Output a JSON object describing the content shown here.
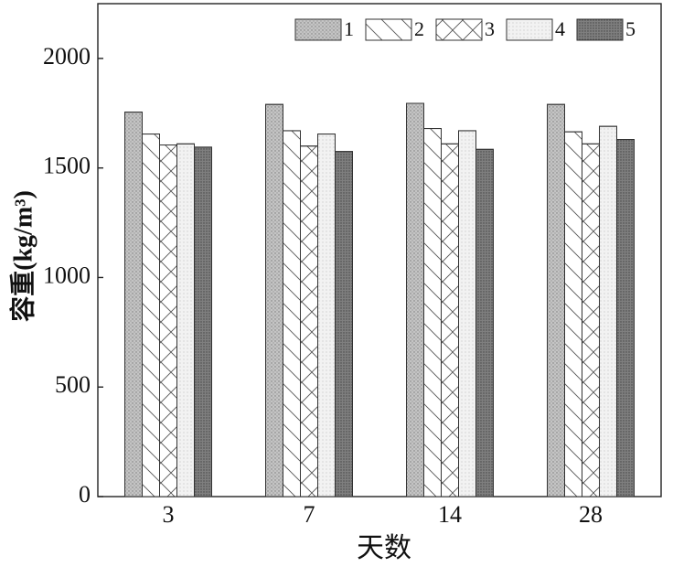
{
  "chart_data": {
    "type": "bar",
    "x_label": "天数",
    "y_label": "容重(kg/m³)",
    "categories": [
      "3",
      "7",
      "14",
      "28"
    ],
    "series": [
      {
        "name": "1",
        "color": "#c4c4c4",
        "hatch": "dots",
        "values": [
          1755,
          1790,
          1795,
          1790
        ]
      },
      {
        "name": "2",
        "color": "#ffffff",
        "hatch": "diagonal",
        "values": [
          1655,
          1670,
          1680,
          1665
        ]
      },
      {
        "name": "3",
        "color": "#ffffff",
        "hatch": "cross",
        "values": [
          1605,
          1600,
          1610,
          1610
        ]
      },
      {
        "name": "4",
        "color": "#f2f2f2",
        "hatch": "fine-dots",
        "values": [
          1610,
          1655,
          1670,
          1690
        ]
      },
      {
        "name": "5",
        "color": "#7f7f7f",
        "hatch": "dense-dots",
        "values": [
          1595,
          1575,
          1585,
          1630
        ]
      }
    ],
    "ylim": [
      0,
      2250
    ],
    "yticks": [
      0,
      500,
      1000,
      1500,
      2000
    ],
    "legend": "top-right",
    "grid": false
  }
}
